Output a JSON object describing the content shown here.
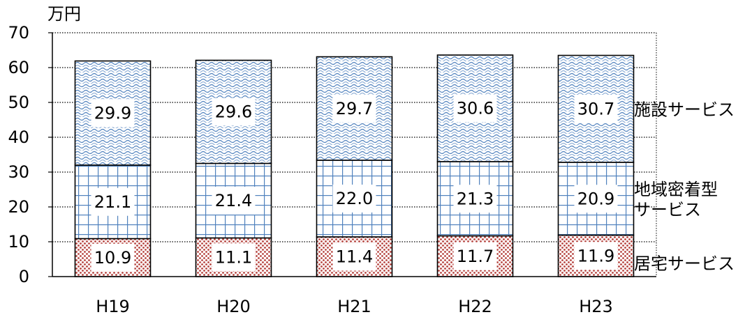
{
  "chart_data": {
    "type": "bar",
    "stacked": true,
    "y_unit": "万円",
    "ylim": [
      0,
      70
    ],
    "yticks": [
      0,
      10,
      20,
      30,
      40,
      50,
      60,
      70
    ],
    "grid": true,
    "categories": [
      "H19",
      "H20",
      "H21",
      "H22",
      "H23"
    ],
    "series": [
      {
        "name": "居宅サービス",
        "values": [
          10.9,
          11.1,
          11.4,
          11.7,
          11.9
        ],
        "labels": [
          "10.9",
          "11.1",
          "11.4",
          "11.7",
          "11.9"
        ],
        "color": "#c0504d"
      },
      {
        "name": "地域密着型サービス",
        "values": [
          21.1,
          21.4,
          22.0,
          21.3,
          20.9
        ],
        "labels": [
          "21.1",
          "21.4",
          "22.0",
          "21.3",
          "20.9"
        ],
        "color": "#4f81bd"
      },
      {
        "name": "施設サービス",
        "values": [
          29.9,
          29.6,
          29.7,
          30.6,
          30.7
        ],
        "labels": [
          "29.9",
          "29.6",
          "29.7",
          "30.6",
          "30.7"
        ],
        "color": "#4f81bd"
      }
    ],
    "side_labels": [
      {
        "series": 2,
        "lines": [
          "施設サービス"
        ]
      },
      {
        "series": 1,
        "lines": [
          "地域密着型",
          "サービス"
        ]
      },
      {
        "series": 0,
        "lines": [
          "居宅サービス"
        ]
      }
    ]
  }
}
